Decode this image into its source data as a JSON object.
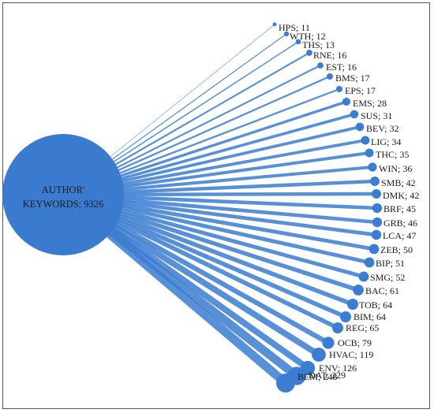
{
  "colors": {
    "node": "#3b7dd1",
    "hub": "#3a7bd0",
    "text": "#1a1a1a",
    "border": "#555555"
  },
  "hub": {
    "label_line1": "AUTHOR'",
    "label_line2": "KEYWORDS; 9326",
    "code": "AUTHOR' KEYWORDS",
    "count": 9326
  },
  "nodes": [
    {
      "code": "HPS",
      "count": 11,
      "label": "HPS; 11"
    },
    {
      "code": "WTH",
      "count": 12,
      "label": "WTH; 12"
    },
    {
      "code": "THS",
      "count": 13,
      "label": "THS; 13"
    },
    {
      "code": "RNE",
      "count": 16,
      "label": "RNE; 16"
    },
    {
      "code": "EST",
      "count": 16,
      "label": "EST; 16"
    },
    {
      "code": "BMS",
      "count": 17,
      "label": "BMS; 17"
    },
    {
      "code": "EPS",
      "count": 17,
      "label": "EPS; 17"
    },
    {
      "code": "EMS",
      "count": 28,
      "label": "EMS; 28"
    },
    {
      "code": "SUS",
      "count": 31,
      "label": "SUS; 31"
    },
    {
      "code": "BEV",
      "count": 32,
      "label": "BEV; 32"
    },
    {
      "code": "LIG",
      "count": 34,
      "label": "LIG; 34"
    },
    {
      "code": "THC",
      "count": 35,
      "label": "THC; 35"
    },
    {
      "code": "WIN",
      "count": 36,
      "label": "WIN; 36"
    },
    {
      "code": "SMB",
      "count": 42,
      "label": "SMB; 42"
    },
    {
      "code": "DMK",
      "count": 42,
      "label": "DMK; 42"
    },
    {
      "code": "BRF",
      "count": 45,
      "label": "BRF; 45"
    },
    {
      "code": "GRB",
      "count": 46,
      "label": "GRB; 46"
    },
    {
      "code": "LCA",
      "count": 47,
      "label": "LCA; 47"
    },
    {
      "code": "ZEB",
      "count": 50,
      "label": "ZEB; 50"
    },
    {
      "code": "BIP",
      "count": 51,
      "label": "BIP; 51"
    },
    {
      "code": "SMG",
      "count": 52,
      "label": "SMG; 52"
    },
    {
      "code": "BAC",
      "count": 61,
      "label": "BAC; 61"
    },
    {
      "code": "TOB",
      "count": 64,
      "label": "TOB; 64"
    },
    {
      "code": "BIM",
      "count": 64,
      "label": "BIM; 64"
    },
    {
      "code": "REG",
      "count": 65,
      "label": "REG; 65"
    },
    {
      "code": "OCB",
      "count": 79,
      "label": "OCB; 79"
    },
    {
      "code": "HVAC",
      "count": 119,
      "label": "HVAC; 119"
    },
    {
      "code": "ENV",
      "count": 126,
      "label": "ENV; 126"
    },
    {
      "code": "DAT",
      "count": 229,
      "label": "DAT; 229"
    },
    {
      "code": "BEM",
      "count": 248,
      "label": "BEM; 248"
    }
  ]
}
